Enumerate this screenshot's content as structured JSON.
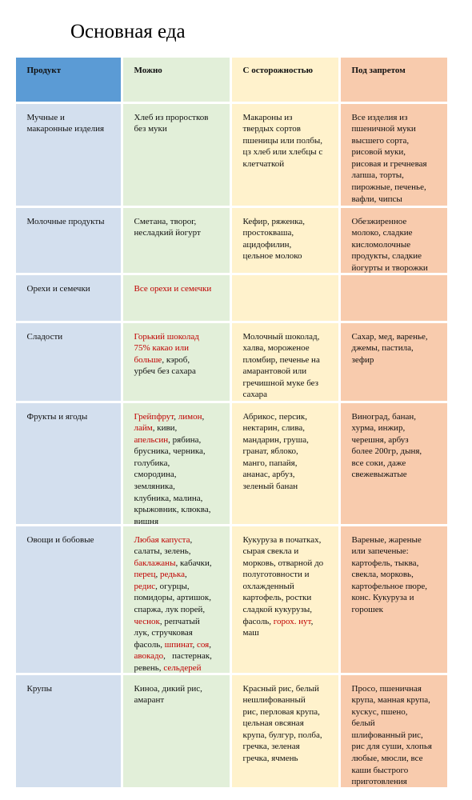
{
  "title": "Основная еда",
  "table": {
    "header": [
      "Продукт",
      "Можно",
      "С осторожностью",
      "Под запретом"
    ],
    "rows": [
      [
        [
          "Мучные и",
          "макаронные изделия"
        ],
        [
          "Хлеб из проростков",
          "без муки"
        ],
        [
          "Макароны из",
          "твердых сортов",
          "пшеницы или полбы,",
          "цз хлеб или хлебцы с",
          "клетчаткой"
        ],
        [
          "Все изделия из",
          "пшеничной муки",
          "высшего сорта,",
          "рисовой муки,",
          "рисовая и гречневая",
          "лапша, торты,",
          "пирожные, печенье,",
          "вафли, чипсы"
        ]
      ],
      [
        [
          "Молочные продукты"
        ],
        [
          "Сметана, творог,",
          "несладкий йогурт"
        ],
        [
          "Кефир, ряженка,",
          "простокваша,",
          "ацидофилин,",
          "цельное молоко"
        ],
        [
          "Обезжиренное",
          "молоко, сладкие",
          "кисломолочные",
          "продукты, сладкие",
          "йогурты и творожки"
        ]
      ],
      [
        [
          "Орехи и семечки"
        ],
        [
          [
            {
              "text": "Все орехи и семечки",
              "red": true
            }
          ]
        ],
        [],
        []
      ],
      [
        [
          "Сладости"
        ],
        [
          [
            {
              "text": "Горький шоколад",
              "red": true
            }
          ],
          [
            {
              "text": "75% какао или",
              "red": true
            }
          ],
          [
            {
              "text": "больше",
              "red": true
            },
            {
              "text": ", кэроб,"
            }
          ],
          "урбеч без сахара"
        ],
        [
          "Молочный шоколад,",
          "халва, мороженое",
          "пломбир, печенье на",
          "амарантовой или",
          "гречишной муке без",
          "сахара"
        ],
        [
          "Сахар, мед, варенье,",
          "джемы, пастила,",
          "зефир"
        ]
      ],
      [
        [
          "Фрукты и ягоды"
        ],
        [
          [
            {
              "text": "Грейпфрут",
              "red": true
            },
            {
              "text": ", "
            },
            {
              "text": "лимон",
              "red": true
            },
            {
              "text": ","
            }
          ],
          [
            {
              "text": "лайм",
              "red": true
            },
            {
              "text": ", киви,"
            }
          ],
          [
            {
              "text": "апельсин",
              "red": true
            },
            {
              "text": ", рябина,"
            }
          ],
          "брусника, черника,",
          "голубика,",
          "смородина,",
          "земляника,",
          "клубника, малина,",
          "крыжовник, клюква,",
          "вишня"
        ],
        [
          "Абрикос, персик,",
          "нектарин, слива,",
          "мандарин, груша,",
          "гранат, яблоко,",
          "манго, папайя,",
          "ананас, арбуз,",
          "зеленый банан"
        ],
        [
          "Виноград, банан,",
          "хурма, инжир,",
          "черешня, арбуз",
          "более 200гр, дыня,",
          "все соки, даже",
          "свежевыжатые"
        ]
      ],
      [
        [
          "Овощи и бобовые"
        ],
        [
          [
            {
              "text": "Любая капуста",
              "red": true
            },
            {
              "text": ","
            }
          ],
          "салаты, зелень,",
          [
            {
              "text": "баклажаны",
              "red": true
            },
            {
              "text": ", кабачки,"
            }
          ],
          [
            {
              "text": "перец",
              "red": true
            },
            {
              "text": ", "
            },
            {
              "text": "редька",
              "red": true
            },
            {
              "text": ","
            }
          ],
          [
            {
              "text": "редис",
              "red": true
            },
            {
              "text": ", огурцы,"
            }
          ],
          "помидоры, артишок,",
          "спаржа, лук порей,",
          [
            {
              "text": "чеснок",
              "red": true
            },
            {
              "text": ", репчатый"
            }
          ],
          "лук, стручковая",
          [
            {
              "text": "фасоль, "
            },
            {
              "text": "шпинат",
              "red": true
            },
            {
              "text": ", "
            },
            {
              "text": "соя",
              "red": true
            },
            {
              "text": ","
            }
          ],
          [
            {
              "text": "авокадо",
              "red": true
            },
            {
              "text": ",   пастернак,"
            }
          ],
          [
            {
              "text": "ревень, "
            },
            {
              "text": "сельдерей",
              "red": true
            }
          ]
        ],
        [
          "Кукуруза в початках,",
          "сырая свекла и",
          "морковь, отварной до",
          "полуготовности и",
          "охлажденный",
          "картофель, ростки",
          "сладкой кукурузы,",
          [
            {
              "text": "фасоль, "
            },
            {
              "text": "горох. нут",
              "red": true
            },
            {
              "text": ","
            }
          ],
          "маш"
        ],
        [
          "Вареные, жареные",
          "или запеченые:",
          "картофель, тыква,",
          "свекла, морковь,",
          "картофельное пюре,",
          "конс. Кукуруза и",
          "горошек"
        ]
      ],
      [
        [
          "Крупы"
        ],
        [
          "Киноа, дикий рис,",
          "амарант"
        ],
        [
          "Красный рис, белый",
          "нешлифованный",
          "рис, перловая крупа,",
          "цельная овсяная",
          "крупа, булгур, полба,",
          "гречка, зеленая",
          "гречка, ячмень"
        ],
        [
          "Просо, пшеничная",
          "крупа, манная крупа,",
          "кускус, пшено,",
          "белый",
          "шлифованный рис,",
          "рис для суши, хлопья",
          "любые, мюсли, все",
          "каши быстрого",
          "приготовления"
        ]
      ]
    ]
  }
}
